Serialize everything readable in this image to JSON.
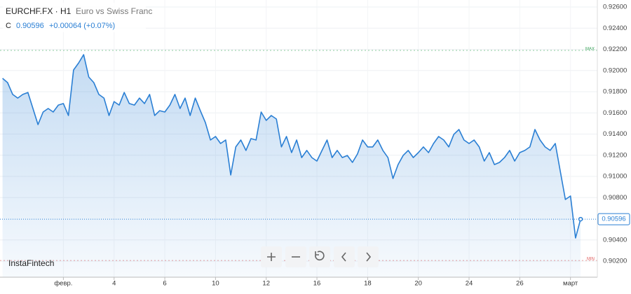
{
  "chart_data": {
    "type": "line",
    "title": "EURCHF.FX · H1",
    "subtitle": "Euro vs Swiss Franc",
    "quote": {
      "prefix": "C",
      "close": "0.90596",
      "change": "+0.00064 (+0.07%)"
    },
    "brand": "InstaFintech",
    "color": "#2a7fd4",
    "grid": true,
    "xlim": [
      -12.5,
      105.3
    ],
    "ylim": [
      0.90048,
      0.92666
    ],
    "xticks": [
      {
        "value": 0,
        "label": "февр."
      },
      {
        "value": 10,
        "label": "4"
      },
      {
        "value": 20,
        "label": "6"
      },
      {
        "value": 30,
        "label": "10"
      },
      {
        "value": 40,
        "label": "12"
      },
      {
        "value": 50,
        "label": "16"
      },
      {
        "value": 60,
        "label": "18"
      },
      {
        "value": 70,
        "label": "20"
      },
      {
        "value": 80,
        "label": "24"
      },
      {
        "value": 90,
        "label": "26"
      },
      {
        "value": 100,
        "label": "март"
      }
    ],
    "yticks": [
      {
        "value": 0.926,
        "label": "0.92600"
      },
      {
        "value": 0.924,
        "label": "0.92400"
      },
      {
        "value": 0.922,
        "label": "0.92200"
      },
      {
        "value": 0.92,
        "label": "0.92000"
      },
      {
        "value": 0.918,
        "label": "0.91800"
      },
      {
        "value": 0.916,
        "label": "0.91600"
      },
      {
        "value": 0.914,
        "label": "0.91400"
      },
      {
        "value": 0.912,
        "label": "0.91200"
      },
      {
        "value": 0.91,
        "label": "0.91000"
      },
      {
        "value": 0.908,
        "label": "0.90800"
      },
      {
        "value": 0.904,
        "label": "0.90400"
      },
      {
        "value": 0.902,
        "label": "0.90200"
      }
    ],
    "last_price": {
      "value": 0.90596,
      "label": "0.90596"
    },
    "max_line": {
      "value": 0.9219,
      "label": "MAX"
    },
    "min_line": {
      "value": 0.90206,
      "label": "MIN"
    },
    "x": [
      -12,
      -11,
      -10,
      -9,
      -8,
      -7,
      -6,
      -5,
      -4,
      -3,
      -2,
      -1,
      0,
      1,
      2,
      3,
      4,
      5,
      6,
      7,
      8,
      9,
      10,
      11,
      12,
      13,
      14,
      15,
      16,
      17,
      18,
      19,
      20,
      21,
      22,
      23,
      24,
      25,
      26,
      27,
      28,
      29,
      30,
      31,
      32,
      33,
      34,
      35,
      36,
      37,
      38,
      39,
      40,
      41,
      42,
      43,
      44,
      45,
      46,
      47,
      48,
      49,
      50,
      51,
      52,
      53,
      54,
      55,
      56,
      57,
      58,
      59,
      60,
      61,
      62,
      63,
      64,
      65,
      66,
      67,
      68,
      69,
      70,
      71,
      72,
      73,
      74,
      75,
      76,
      77,
      78,
      79,
      80,
      81,
      82,
      83,
      84,
      85,
      86,
      87,
      88,
      89,
      90,
      91,
      92,
      93,
      94,
      95,
      96,
      97,
      98,
      99,
      100,
      101,
      102
    ],
    "values": [
      0.91926,
      0.91886,
      0.91774,
      0.9174,
      0.91774,
      0.91793,
      0.91641,
      0.91489,
      0.91608,
      0.91641,
      0.91608,
      0.91674,
      0.91688,
      0.91575,
      0.92005,
      0.92071,
      0.9215,
      0.91939,
      0.91886,
      0.91774,
      0.9174,
      0.91575,
      0.91707,
      0.91674,
      0.91793,
      0.91688,
      0.91674,
      0.9174,
      0.91688,
      0.91774,
      0.91575,
      0.91621,
      0.91608,
      0.91674,
      0.91774,
      0.91641,
      0.9174,
      0.91575,
      0.9174,
      0.91621,
      0.91509,
      0.91344,
      0.91377,
      0.91311,
      0.91344,
      0.91013,
      0.91278,
      0.91344,
      0.91245,
      0.91357,
      0.91344,
      0.91608,
      0.91529,
      0.91575,
      0.91542,
      0.91278,
      0.91377,
      0.91225,
      0.91344,
      0.91178,
      0.91245,
      0.91178,
      0.91145,
      0.91245,
      0.91344,
      0.91178,
      0.91245,
      0.91178,
      0.91198,
      0.91132,
      0.91212,
      0.91344,
      0.91278,
      0.91278,
      0.91344,
      0.91245,
      0.91178,
      0.9098,
      0.91112,
      0.91198,
      0.91245,
      0.91178,
      0.91225,
      0.91278,
      0.91225,
      0.91311,
      0.91377,
      0.91344,
      0.91278,
      0.91397,
      0.91443,
      0.91344,
      0.91311,
      0.91344,
      0.91278,
      0.91145,
      0.91225,
      0.91112,
      0.91132,
      0.91178,
      0.91245,
      0.91145,
      0.91225,
      0.91245,
      0.91278,
      0.91443,
      0.91344,
      0.91278,
      0.91245,
      0.91311,
      0.91046,
      0.90782,
      0.90815,
      0.90418,
      0.90596
    ]
  }
}
